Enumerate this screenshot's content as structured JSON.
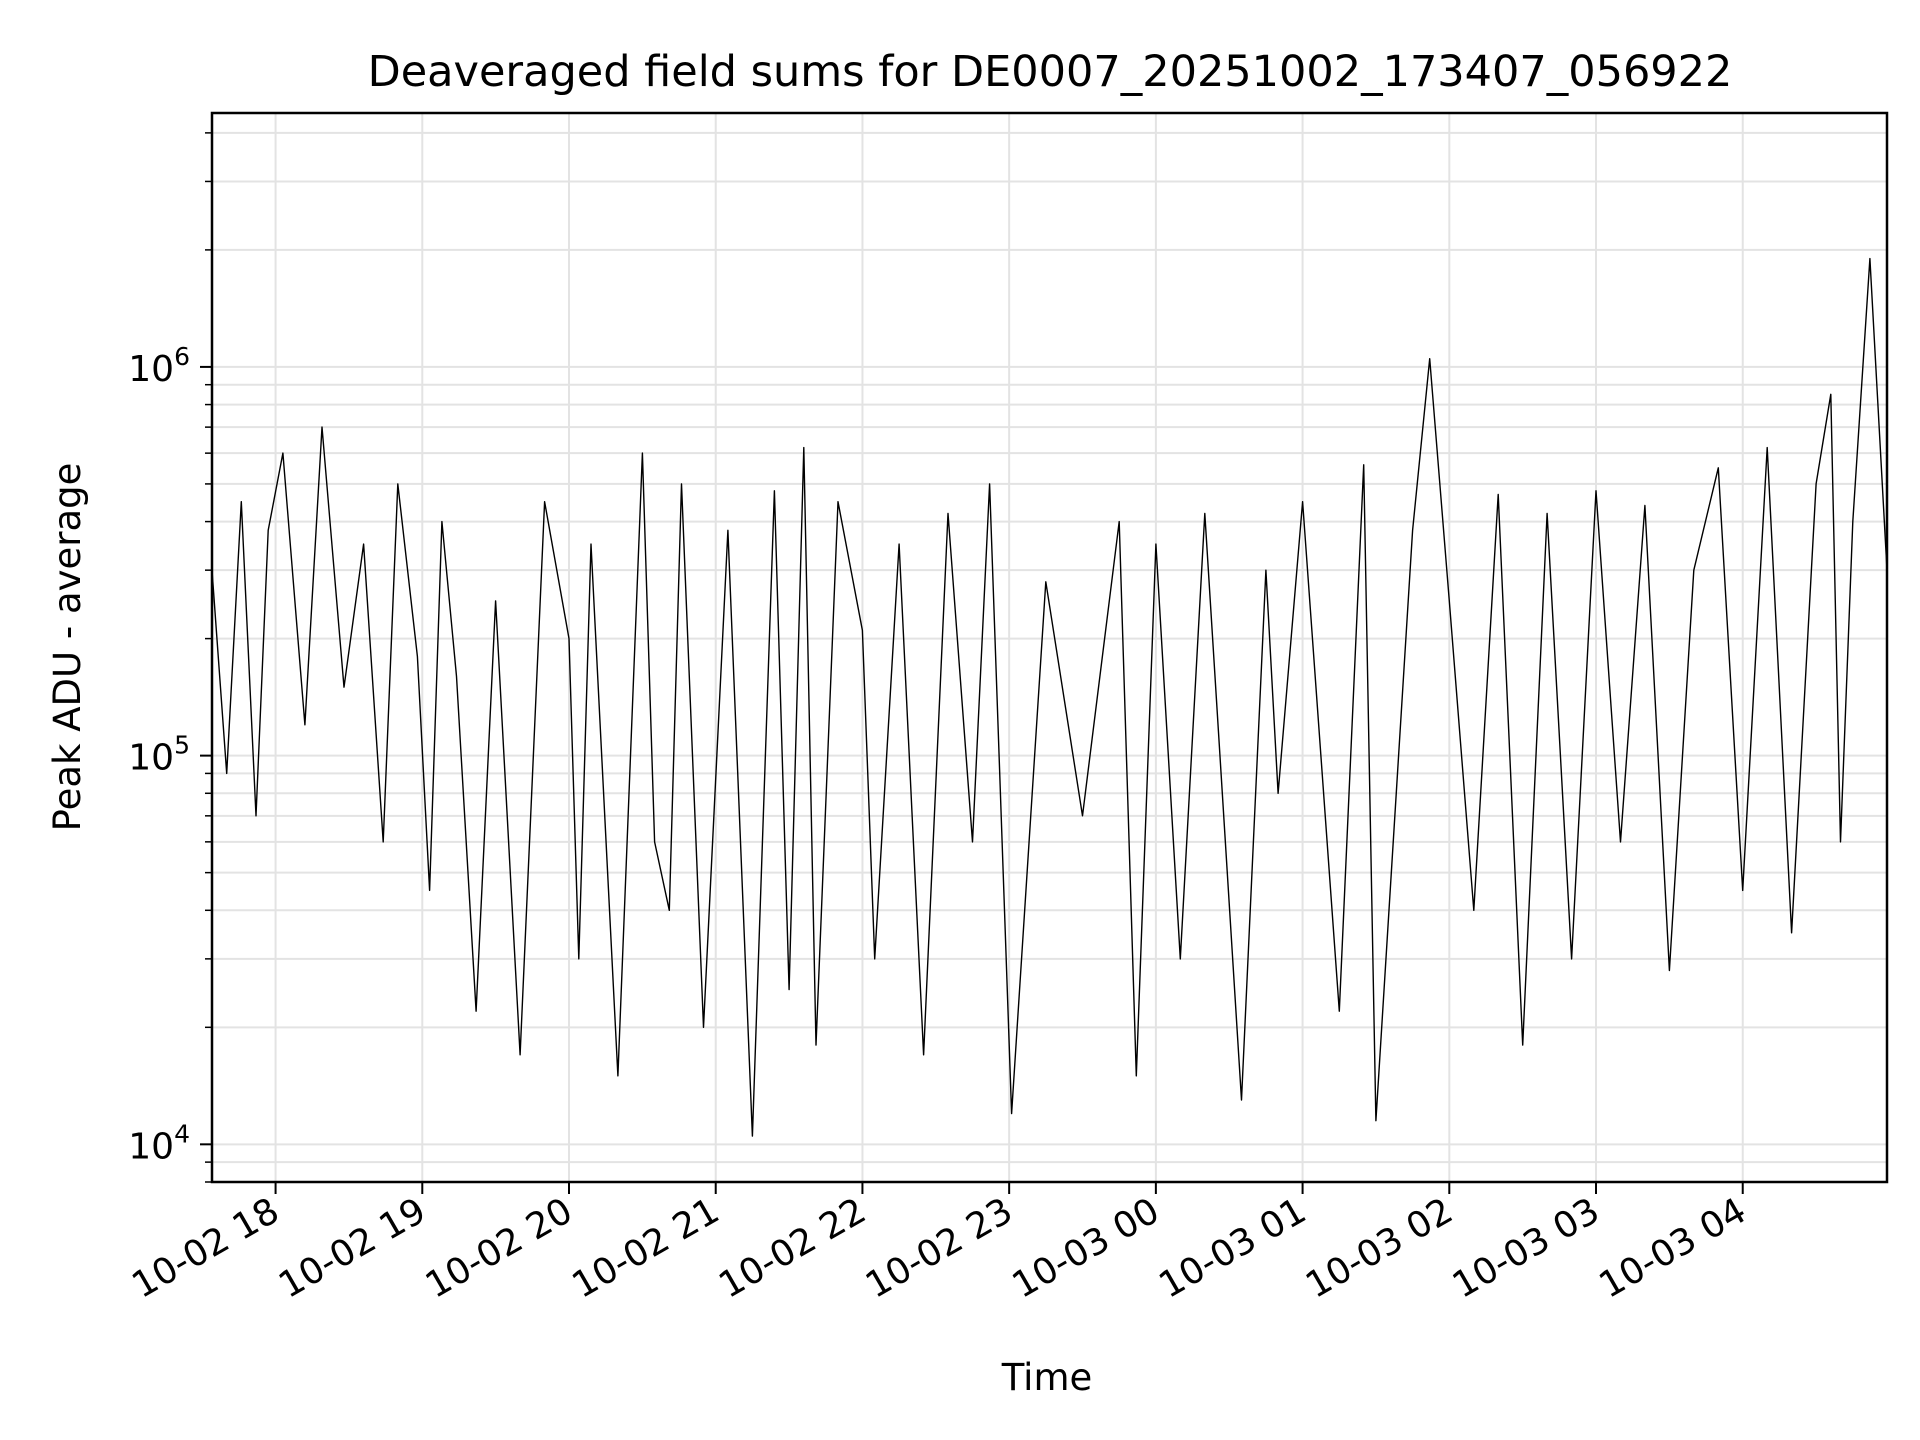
{
  "chart_data": {
    "type": "line",
    "title": "Deaveraged field sums for DE0007_20251002_173407_056922",
    "xlabel": "Time",
    "ylabel": "Peak ADU - average",
    "y_scale": "log",
    "ylim": [
      8000,
      4500000
    ],
    "xlim": [
      "2025-10-02 17:34",
      "2025-10-03 04:59"
    ],
    "x_ticks": [
      {
        "t": "2025-10-02 18:00",
        "label": "10-02 18"
      },
      {
        "t": "2025-10-02 19:00",
        "label": "10-02 19"
      },
      {
        "t": "2025-10-02 20:00",
        "label": "10-02 20"
      },
      {
        "t": "2025-10-02 21:00",
        "label": "10-02 21"
      },
      {
        "t": "2025-10-02 22:00",
        "label": "10-02 22"
      },
      {
        "t": "2025-10-02 23:00",
        "label": "10-02 23"
      },
      {
        "t": "2025-10-03 00:00",
        "label": "10-03 00"
      },
      {
        "t": "2025-10-03 01:00",
        "label": "10-03 01"
      },
      {
        "t": "2025-10-03 02:00",
        "label": "10-03 02"
      },
      {
        "t": "2025-10-03 03:00",
        "label": "10-03 03"
      },
      {
        "t": "2025-10-03 04:00",
        "label": "10-03 04"
      }
    ],
    "y_ticks": [
      {
        "value": 10000,
        "base": "10",
        "exp": "4"
      },
      {
        "value": 100000,
        "base": "10",
        "exp": "5"
      },
      {
        "value": 1000000,
        "base": "10",
        "exp": "6"
      }
    ],
    "grid": true,
    "line_color": "#000000",
    "series": [
      {
        "x": [
          "2025-10-02 17:34",
          "2025-10-02 17:40",
          "2025-10-02 17:46",
          "2025-10-02 17:52",
          "2025-10-02 17:57",
          "2025-10-02 18:03",
          "2025-10-02 18:12",
          "2025-10-02 18:19",
          "2025-10-02 18:28",
          "2025-10-02 18:36",
          "2025-10-02 18:44",
          "2025-10-02 18:50",
          "2025-10-02 18:58",
          "2025-10-02 19:03",
          "2025-10-02 19:08",
          "2025-10-02 19:14",
          "2025-10-02 19:22",
          "2025-10-02 19:30",
          "2025-10-02 19:40",
          "2025-10-02 19:50",
          "2025-10-02 20:00",
          "2025-10-02 20:04",
          "2025-10-02 20:09",
          "2025-10-02 20:20",
          "2025-10-02 20:30",
          "2025-10-02 20:35",
          "2025-10-02 20:41",
          "2025-10-02 20:46",
          "2025-10-02 20:55",
          "2025-10-02 21:05",
          "2025-10-02 21:15",
          "2025-10-02 21:24",
          "2025-10-02 21:30",
          "2025-10-02 21:36",
          "2025-10-02 21:41",
          "2025-10-02 21:50",
          "2025-10-02 22:00",
          "2025-10-02 22:05",
          "2025-10-02 22:15",
          "2025-10-02 22:25",
          "2025-10-02 22:35",
          "2025-10-02 22:45",
          "2025-10-02 22:52",
          "2025-10-02 23:01",
          "2025-10-02 23:15",
          "2025-10-02 23:30",
          "2025-10-02 23:45",
          "2025-10-02 23:52",
          "2025-10-03 00:00",
          "2025-10-03 00:10",
          "2025-10-03 00:20",
          "2025-10-03 00:35",
          "2025-10-03 00:45",
          "2025-10-03 00:50",
          "2025-10-03 01:00",
          "2025-10-03 01:15",
          "2025-10-03 01:25",
          "2025-10-03 01:30",
          "2025-10-03 01:45",
          "2025-10-03 01:52",
          "2025-10-03 02:00",
          "2025-10-03 02:10",
          "2025-10-03 02:20",
          "2025-10-03 02:30",
          "2025-10-03 02:40",
          "2025-10-03 02:50",
          "2025-10-03 03:00",
          "2025-10-03 03:10",
          "2025-10-03 03:20",
          "2025-10-03 03:30",
          "2025-10-03 03:40",
          "2025-10-03 03:50",
          "2025-10-03 04:00",
          "2025-10-03 04:10",
          "2025-10-03 04:20",
          "2025-10-03 04:30",
          "2025-10-03 04:36",
          "2025-10-03 04:40",
          "2025-10-03 04:45",
          "2025-10-03 04:52",
          "2025-10-03 04:59"
        ],
        "y": [
          300000,
          90000,
          450000,
          70000,
          380000,
          600000,
          120000,
          700000,
          150000,
          350000,
          60000,
          500000,
          180000,
          45000,
          400000,
          160000,
          22000,
          250000,
          17000,
          450000,
          200000,
          30000,
          350000,
          15000,
          600000,
          60000,
          40000,
          500000,
          20000,
          380000,
          10500,
          480000,
          25000,
          620000,
          18000,
          450000,
          210000,
          30000,
          350000,
          17000,
          420000,
          60000,
          500000,
          12000,
          280000,
          70000,
          400000,
          15000,
          350000,
          30000,
          420000,
          13000,
          300000,
          80000,
          450000,
          22000,
          560000,
          11500,
          380000,
          1050000,
          250000,
          40000,
          470000,
          18000,
          420000,
          30000,
          480000,
          60000,
          440000,
          28000,
          300000,
          550000,
          45000,
          620000,
          35000,
          500000,
          850000,
          60000,
          400000,
          1900000,
          300000
        ]
      }
    ]
  }
}
